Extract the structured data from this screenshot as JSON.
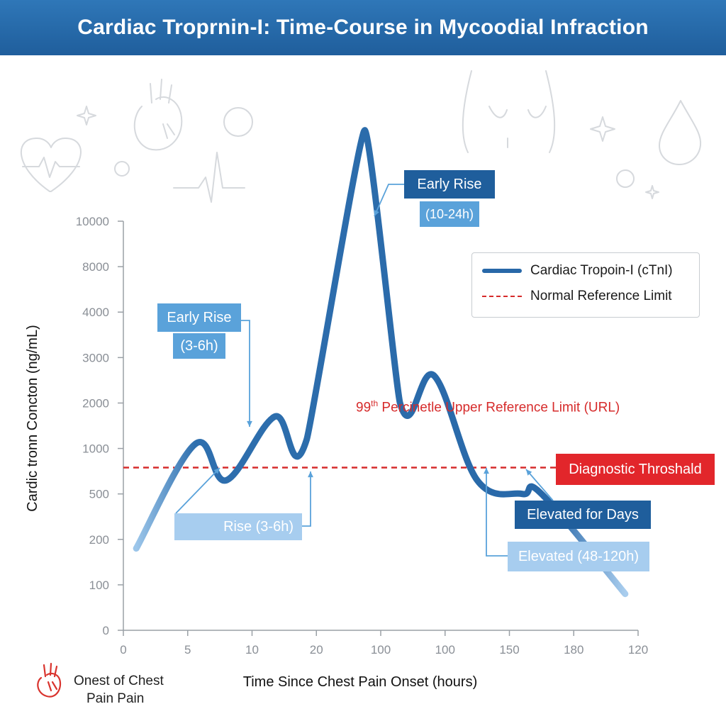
{
  "title": "Cardiac Troprnin-I: Time-Course in Mycoodial Infraction",
  "chart_data": {
    "type": "line",
    "title": "Cardiac Troprnin-I: Time-Course in Mycoodial Infraction",
    "xlabel": "Time Since Chest Pain Onset (hours)",
    "ylabel": "Cardic tronn Concton (ng/mL)",
    "x_ticks": [
      "0",
      "5",
      "10",
      "20",
      "100",
      "100",
      "150",
      "180",
      "120"
    ],
    "y_ticks": [
      "0",
      "100",
      "200",
      "500",
      "1000",
      "2000",
      "3000",
      "4000",
      "8000",
      "10000"
    ],
    "x_scale": "categorical ticks",
    "y_scale": "categorical ticks",
    "grid": false,
    "legend_position": "top-right",
    "series": [
      {
        "name": "Cardiac Tropoin-I (cTnI)",
        "color": "#2868a8",
        "points": [
          {
            "x": "0",
            "y": 180
          },
          {
            "x": "5",
            "y": 1100
          },
          {
            "x": "5-10",
            "y": 650
          },
          {
            "x": "10",
            "y": 1700
          },
          {
            "x": "10-20",
            "y": 1200
          },
          {
            "x": "20-100",
            "y": 14000
          },
          {
            "x": "100",
            "y": 2000
          },
          {
            "x": "100",
            "y": 2600
          },
          {
            "x": "100-150",
            "y": 650
          },
          {
            "x": "150",
            "y": 500
          },
          {
            "x": "180",
            "y": 500
          },
          {
            "x": "120",
            "y": 80
          }
        ]
      },
      {
        "name": "Normal Reference Limit",
        "color": "#d62b2b",
        "style": "dashed",
        "y_position_between_ticks": [
          "500",
          "1000"
        ]
      }
    ],
    "annotations": [
      {
        "text": "Early Rise",
        "sub": "(10-24h)"
      },
      {
        "text": "Early Rise",
        "sub": "(3-6h)"
      },
      {
        "text": "Rise (3-6h)"
      },
      {
        "text": "Elevated for Days"
      },
      {
        "text": "Elevated (48-120h)"
      },
      {
        "text": "Diagnostic Throshald"
      },
      {
        "text": "99th Percinetle Upper Reference Limit (URL)"
      }
    ]
  },
  "legend": {
    "line_label": "Cardiac Tropoin-I (cTnI)",
    "dash_label": "Normal Reference Limit"
  },
  "callouts": {
    "early_rise_top": "Early Rise",
    "early_rise_top_sub": "(10-24h)",
    "early_rise_left": "Early Rise",
    "early_rise_left_sub": "(3-6h)",
    "rise": "Rise (3-6h)",
    "elevated_days": "Elevated for Days",
    "elevated_range": "Elevated (48-120h)",
    "diagnostic": "Diagnostic Throshald",
    "url_label_prefix": "99",
    "url_label_sup": "th",
    "url_label_rest": " Percinetle Upper Reference Limit (URL)"
  },
  "footer": {
    "line1": "Onest of Chest",
    "line2": "Pain Pain",
    "icon": "heart-anatomy-icon"
  }
}
